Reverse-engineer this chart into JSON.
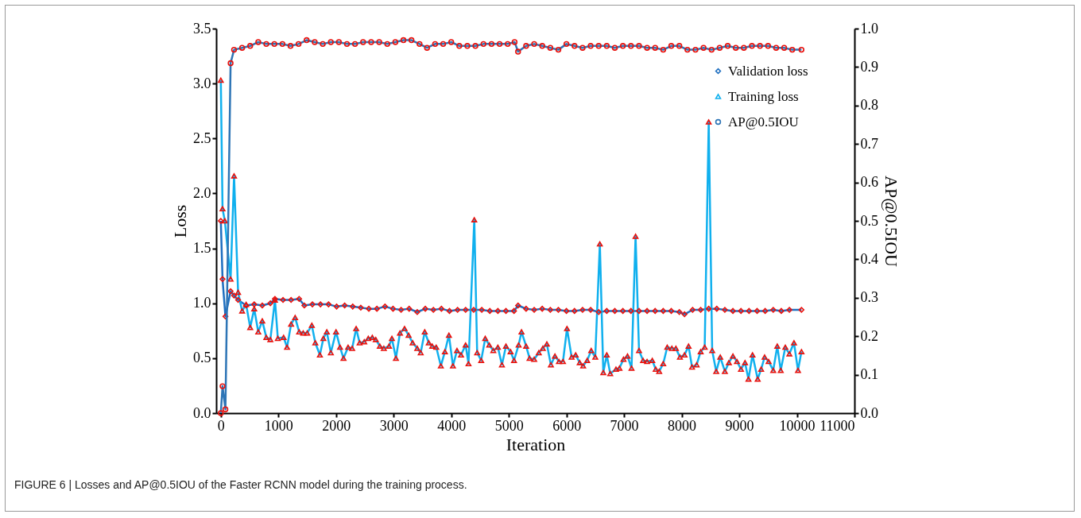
{
  "chart_data": {
    "type": "line",
    "xlabel": "Iteration",
    "ylabel": "Loss",
    "y2label": "AP@0.5IOU",
    "annotations": [
      "FIGURE 6 | Losses and AP@0.5IOU of the Faster RCNN model during the training process."
    ],
    "xlim": [
      -80,
      11000
    ],
    "xticks": [
      0,
      1000,
      2000,
      3000,
      4000,
      5000,
      6000,
      7000,
      8000,
      9000,
      10000,
      11000
    ],
    "ylim": [
      0,
      3.5
    ],
    "yticks": [
      {
        "value": 0,
        "label": "0.0"
      },
      0.5,
      {
        "value": 1,
        "label": "1.0"
      },
      1.5,
      {
        "value": 2,
        "label": "2.0"
      },
      2.5,
      {
        "value": 3,
        "label": "3.0"
      },
      3.5
    ],
    "y2lim": [
      0,
      1
    ],
    "y2ticks": [
      {
        "value": 0,
        "label": "0.0"
      },
      0.1,
      0.2,
      0.3,
      0.4,
      0.5,
      0.6,
      0.7,
      0.8,
      0.9,
      {
        "value": 1,
        "label": "1.0"
      }
    ],
    "legend": "top right",
    "grid": false,
    "series": [
      {
        "name": "Validation loss",
        "color": "#1f6fc0",
        "marker": "diamond",
        "x": [
          0,
          30,
          80,
          170,
          230,
          300,
          440,
          580,
          720,
          860,
          940,
          1080,
          1220,
          1360,
          1450,
          1590,
          1730,
          1870,
          2010,
          2150,
          2290,
          2430,
          2570,
          2710,
          2850,
          2990,
          3130,
          3270,
          3410,
          3550,
          3690,
          3830,
          3970,
          4110,
          4250,
          4390,
          4530,
          4670,
          4810,
          4950,
          5090,
          5160,
          5300,
          5440,
          5580,
          5720,
          5860,
          6000,
          6140,
          6280,
          6420,
          6560,
          6700,
          6840,
          6980,
          7120,
          7260,
          7400,
          7540,
          7680,
          7820,
          7960,
          8050,
          8190,
          8330,
          8470,
          8610,
          8750,
          8890,
          9030,
          9170,
          9310,
          9450,
          9590,
          9730,
          9870,
          10080
        ],
        "values": [
          1.75,
          1.22,
          0.88,
          1.11,
          1.07,
          1.03,
          0.98,
          0.99,
          0.98,
          1.0,
          1.04,
          1.03,
          1.03,
          1.04,
          0.98,
          0.99,
          0.99,
          0.99,
          0.97,
          0.98,
          0.97,
          0.96,
          0.95,
          0.95,
          0.97,
          0.95,
          0.94,
          0.95,
          0.92,
          0.95,
          0.94,
          0.95,
          0.93,
          0.94,
          0.94,
          0.94,
          0.94,
          0.93,
          0.93,
          0.93,
          0.93,
          0.98,
          0.95,
          0.94,
          0.95,
          0.94,
          0.94,
          0.93,
          0.93,
          0.94,
          0.94,
          0.92,
          0.93,
          0.93,
          0.93,
          0.93,
          0.93,
          0.93,
          0.93,
          0.93,
          0.93,
          0.92,
          0.9,
          0.94,
          0.94,
          0.95,
          0.95,
          0.94,
          0.93,
          0.93,
          0.93,
          0.93,
          0.93,
          0.94,
          0.93,
          0.94,
          0.94
        ]
      },
      {
        "name": "Training loss",
        "color": "#10b0ee",
        "marker": "triangle",
        "x": [
          0,
          30,
          70,
          170,
          230,
          300,
          370,
          440,
          510,
          580,
          650,
          720,
          790,
          860,
          940,
          990,
          1090,
          1150,
          1220,
          1290,
          1360,
          1430,
          1500,
          1580,
          1640,
          1720,
          1780,
          1840,
          1910,
          2000,
          2070,
          2130,
          2210,
          2280,
          2350,
          2410,
          2490,
          2560,
          2630,
          2690,
          2760,
          2830,
          2920,
          2970,
          3040,
          3110,
          3190,
          3260,
          3330,
          3410,
          3470,
          3540,
          3610,
          3670,
          3740,
          3820,
          3890,
          3960,
          4030,
          4100,
          4170,
          4250,
          4300,
          4400,
          4450,
          4520,
          4590,
          4660,
          4730,
          4810,
          4880,
          4950,
          5030,
          5090,
          5170,
          5220,
          5300,
          5360,
          5440,
          5520,
          5590,
          5660,
          5730,
          5800,
          5870,
          5940,
          6010,
          6090,
          6160,
          6230,
          6290,
          6360,
          6430,
          6500,
          6580,
          6640,
          6700,
          6760,
          6860,
          6920,
          6990,
          7060,
          7130,
          7200,
          7260,
          7330,
          7400,
          7490,
          7550,
          7610,
          7680,
          7750,
          7830,
          7900,
          7970,
          8050,
          8120,
          8180,
          8260,
          8330,
          8400,
          8470,
          8530,
          8600,
          8670,
          8750,
          8820,
          8890,
          8960,
          9030,
          9100,
          9160,
          9230,
          9320,
          9380,
          9440,
          9510,
          9590,
          9660,
          9720,
          9800,
          9870,
          9950,
          10020,
          10080
        ],
        "values": [
          3.03,
          1.86,
          1.75,
          1.22,
          2.16,
          1.1,
          0.93,
          0.99,
          0.78,
          0.95,
          0.74,
          0.84,
          0.69,
          0.67,
          1.03,
          0.68,
          0.69,
          0.6,
          0.81,
          0.87,
          0.74,
          0.73,
          0.73,
          0.8,
          0.64,
          0.53,
          0.68,
          0.74,
          0.55,
          0.74,
          0.6,
          0.5,
          0.6,
          0.59,
          0.77,
          0.64,
          0.65,
          0.68,
          0.69,
          0.67,
          0.61,
          0.59,
          0.61,
          0.68,
          0.5,
          0.73,
          0.77,
          0.71,
          0.64,
          0.59,
          0.55,
          0.74,
          0.64,
          0.61,
          0.6,
          0.43,
          0.56,
          0.71,
          0.43,
          0.57,
          0.53,
          0.62,
          0.45,
          1.76,
          0.55,
          0.48,
          0.68,
          0.62,
          0.57,
          0.6,
          0.44,
          0.61,
          0.56,
          0.48,
          0.62,
          0.74,
          0.61,
          0.5,
          0.49,
          0.55,
          0.59,
          0.63,
          0.44,
          0.52,
          0.47,
          0.47,
          0.77,
          0.51,
          0.53,
          0.46,
          0.43,
          0.48,
          0.57,
          0.51,
          1.54,
          0.37,
          0.53,
          0.36,
          0.4,
          0.41,
          0.49,
          0.52,
          0.41,
          1.61,
          0.57,
          0.48,
          0.47,
          0.48,
          0.4,
          0.38,
          0.45,
          0.6,
          0.59,
          0.59,
          0.51,
          0.53,
          0.61,
          0.42,
          0.44,
          0.56,
          0.6,
          2.65,
          0.57,
          0.38,
          0.51,
          0.38,
          0.46,
          0.52,
          0.47,
          0.4,
          0.46,
          0.31,
          0.53,
          0.31,
          0.4,
          0.51,
          0.47,
          0.39,
          0.61,
          0.39,
          0.6,
          0.54,
          0.64,
          0.39,
          0.56
        ]
      },
      {
        "name": "AP@0.5IOU",
        "color": "#2e75b6",
        "marker": "circle",
        "axis": "y2",
        "x": [
          0,
          30,
          80,
          170,
          230,
          370,
          510,
          650,
          790,
          930,
          1070,
          1210,
          1350,
          1490,
          1630,
          1770,
          1910,
          2050,
          2190,
          2330,
          2470,
          2610,
          2750,
          2890,
          3030,
          3170,
          3310,
          3450,
          3580,
          3720,
          3860,
          4000,
          4140,
          4280,
          4420,
          4560,
          4700,
          4840,
          4980,
          5100,
          5160,
          5300,
          5440,
          5580,
          5720,
          5860,
          6000,
          6140,
          6280,
          6420,
          6560,
          6700,
          6840,
          6980,
          7120,
          7260,
          7400,
          7540,
          7680,
          7820,
          7960,
          8100,
          8240,
          8380,
          8520,
          8660,
          8800,
          8940,
          9080,
          9220,
          9360,
          9500,
          9640,
          9780,
          9920,
          10080
        ],
        "values": [
          0.0,
          0.07,
          0.01,
          0.91,
          0.945,
          0.95,
          0.955,
          0.965,
          0.96,
          0.96,
          0.96,
          0.955,
          0.96,
          0.97,
          0.965,
          0.96,
          0.965,
          0.965,
          0.96,
          0.96,
          0.965,
          0.965,
          0.965,
          0.96,
          0.965,
          0.97,
          0.97,
          0.96,
          0.95,
          0.96,
          0.96,
          0.965,
          0.955,
          0.955,
          0.955,
          0.96,
          0.96,
          0.96,
          0.96,
          0.965,
          0.94,
          0.955,
          0.96,
          0.955,
          0.95,
          0.945,
          0.96,
          0.955,
          0.95,
          0.955,
          0.955,
          0.955,
          0.95,
          0.955,
          0.955,
          0.955,
          0.95,
          0.95,
          0.945,
          0.955,
          0.955,
          0.945,
          0.945,
          0.95,
          0.945,
          0.95,
          0.955,
          0.95,
          0.95,
          0.955,
          0.955,
          0.955,
          0.95,
          0.95,
          0.945,
          0.945
        ]
      }
    ]
  }
}
